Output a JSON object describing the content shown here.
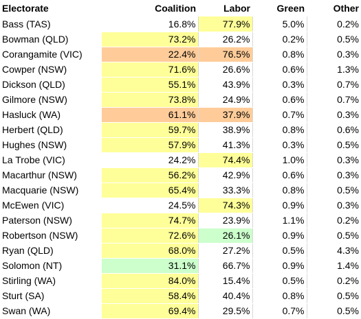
{
  "headers": {
    "electorate": "Electorate",
    "coalition": "Coalition",
    "labor": "Labor",
    "green": "Green",
    "other": "Other"
  },
  "colors": {
    "yellow": "#ffff99",
    "orange": "#ffcc99",
    "green": "#ccffcc"
  },
  "rows": [
    {
      "name": "Bass (TAS)",
      "coalition": "16.8%",
      "labor": "77.9%",
      "green": "5.0%",
      "other": "0.2%",
      "hl_coalition": "",
      "hl_labor": "yellow"
    },
    {
      "name": "Bowman (QLD)",
      "coalition": "73.2%",
      "labor": "26.2%",
      "green": "0.2%",
      "other": "0.5%",
      "hl_coalition": "yellow",
      "hl_labor": ""
    },
    {
      "name": "Corangamite (VIC)",
      "coalition": "22.4%",
      "labor": "76.5%",
      "green": "0.8%",
      "other": "0.3%",
      "hl_coalition": "orange",
      "hl_labor": "orange"
    },
    {
      "name": "Cowper (NSW)",
      "coalition": "71.6%",
      "labor": "26.6%",
      "green": "0.6%",
      "other": "1.3%",
      "hl_coalition": "yellow",
      "hl_labor": ""
    },
    {
      "name": "Dickson (QLD)",
      "coalition": "55.1%",
      "labor": "43.9%",
      "green": "0.3%",
      "other": "0.7%",
      "hl_coalition": "yellow",
      "hl_labor": ""
    },
    {
      "name": "Gilmore (NSW)",
      "coalition": "73.8%",
      "labor": "24.9%",
      "green": "0.6%",
      "other": "0.7%",
      "hl_coalition": "yellow",
      "hl_labor": ""
    },
    {
      "name": "Hasluck (WA)",
      "coalition": "61.1%",
      "labor": "37.9%",
      "green": "0.7%",
      "other": "0.3%",
      "hl_coalition": "orange",
      "hl_labor": "orange"
    },
    {
      "name": "Herbert (QLD)",
      "coalition": "59.7%",
      "labor": "38.9%",
      "green": "0.8%",
      "other": "0.6%",
      "hl_coalition": "yellow",
      "hl_labor": ""
    },
    {
      "name": "Hughes (NSW)",
      "coalition": "57.9%",
      "labor": "41.3%",
      "green": "0.3%",
      "other": "0.5%",
      "hl_coalition": "yellow",
      "hl_labor": ""
    },
    {
      "name": "La Trobe (VIC)",
      "coalition": "24.2%",
      "labor": "74.4%",
      "green": "1.0%",
      "other": "0.3%",
      "hl_coalition": "",
      "hl_labor": "yellow"
    },
    {
      "name": "Macarthur (NSW)",
      "coalition": "56.2%",
      "labor": "42.9%",
      "green": "0.6%",
      "other": "0.3%",
      "hl_coalition": "yellow",
      "hl_labor": ""
    },
    {
      "name": "Macquarie (NSW)",
      "coalition": "65.4%",
      "labor": "33.3%",
      "green": "0.8%",
      "other": "0.5%",
      "hl_coalition": "yellow",
      "hl_labor": ""
    },
    {
      "name": "McEwen (VIC)",
      "coalition": "24.5%",
      "labor": "74.3%",
      "green": "0.9%",
      "other": "0.3%",
      "hl_coalition": "",
      "hl_labor": "yellow"
    },
    {
      "name": "Paterson (NSW)",
      "coalition": "74.7%",
      "labor": "23.9%",
      "green": "1.1%",
      "other": "0.2%",
      "hl_coalition": "yellow",
      "hl_labor": ""
    },
    {
      "name": "Robertson (NSW)",
      "coalition": "72.6%",
      "labor": "26.1%",
      "green": "0.9%",
      "other": "0.5%",
      "hl_coalition": "yellow",
      "hl_labor": "green"
    },
    {
      "name": "Ryan (QLD)",
      "coalition": "68.0%",
      "labor": "27.2%",
      "green": "0.5%",
      "other": "4.3%",
      "hl_coalition": "yellow",
      "hl_labor": ""
    },
    {
      "name": "Solomon (NT)",
      "coalition": "31.1%",
      "labor": "66.7%",
      "green": "0.9%",
      "other": "1.4%",
      "hl_coalition": "green",
      "hl_labor": ""
    },
    {
      "name": "Stirling (WA)",
      "coalition": "84.0%",
      "labor": "15.4%",
      "green": "0.5%",
      "other": "0.2%",
      "hl_coalition": "yellow",
      "hl_labor": ""
    },
    {
      "name": "Sturt (SA)",
      "coalition": "58.4%",
      "labor": "40.4%",
      "green": "0.8%",
      "other": "0.5%",
      "hl_coalition": "yellow",
      "hl_labor": ""
    },
    {
      "name": "Swan (WA)",
      "coalition": "69.4%",
      "labor": "29.5%",
      "green": "0.7%",
      "other": "0.5%",
      "hl_coalition": "yellow",
      "hl_labor": ""
    }
  ]
}
